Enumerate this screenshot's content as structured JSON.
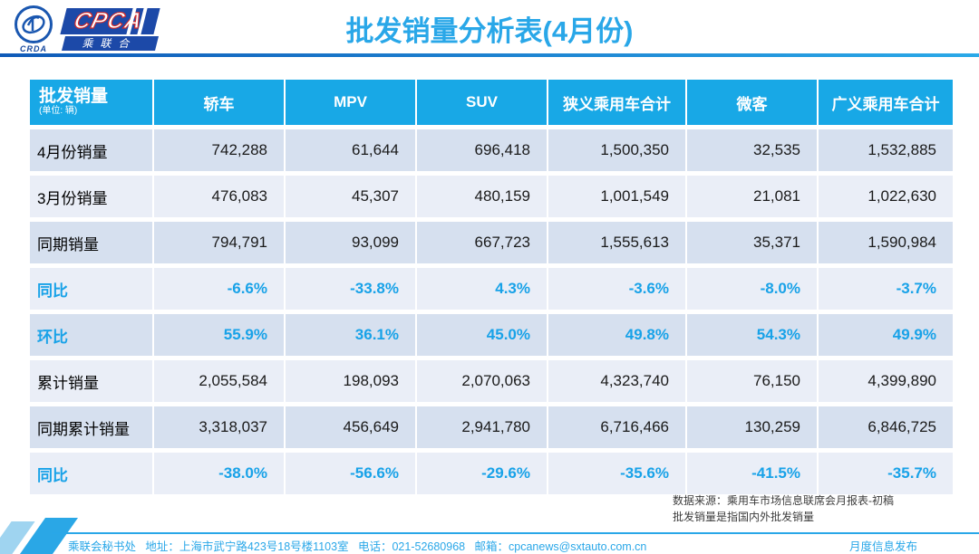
{
  "header": {
    "title": "批发销量分析表(4月份)",
    "logo": {
      "emblem_text": "CRDA",
      "brand": "CPCA",
      "brand_sub": "乘联合"
    }
  },
  "table": {
    "corner": {
      "title": "批发销量",
      "unit": "(单位: 辆)"
    },
    "columns": [
      "轿车",
      "MPV",
      "SUV",
      "狭义乘用车合计",
      "微客",
      "广义乘用车合计"
    ],
    "rows": [
      {
        "label": "4月份销量",
        "kind": "number",
        "values": [
          "742,288",
          "61,644",
          "696,418",
          "1,500,350",
          "32,535",
          "1,532,885"
        ]
      },
      {
        "label": "3月份销量",
        "kind": "number",
        "values": [
          "476,083",
          "45,307",
          "480,159",
          "1,001,549",
          "21,081",
          "1,022,630"
        ]
      },
      {
        "label": "同期销量",
        "kind": "number",
        "values": [
          "794,791",
          "93,099",
          "667,723",
          "1,555,613",
          "35,371",
          "1,590,984"
        ]
      },
      {
        "label": "同比",
        "kind": "percent",
        "values": [
          "-6.6%",
          "-33.8%",
          "4.3%",
          "-3.6%",
          "-8.0%",
          "-3.7%"
        ]
      },
      {
        "label": "环比",
        "kind": "percent",
        "values": [
          "55.9%",
          "36.1%",
          "45.0%",
          "49.8%",
          "54.3%",
          "49.9%"
        ]
      },
      {
        "label": "累计销量",
        "kind": "number",
        "values": [
          "2,055,584",
          "198,093",
          "2,070,063",
          "4,323,740",
          "76,150",
          "4,399,890"
        ]
      },
      {
        "label": "同期累计销量",
        "kind": "number",
        "values": [
          "3,318,037",
          "456,649",
          "2,941,780",
          "6,716,466",
          "130,259",
          "6,846,725"
        ]
      },
      {
        "label": "同比",
        "kind": "percent",
        "values": [
          "-38.0%",
          "-56.6%",
          "-29.6%",
          "-35.6%",
          "-41.5%",
          "-35.7%"
        ]
      }
    ]
  },
  "notes": {
    "line1": "数据来源：乘用车市场信息联席会月报表-初稿",
    "line2": "批发销量是指国内外批发销量"
  },
  "footer": {
    "left": "乘联会秘书处   地址：上海市武宁路423号18号楼1103室   电话：021-52680968   邮箱：cpcanews@sxtauto.com.cn",
    "right": "月度信息发布"
  },
  "colors": {
    "accent_cyan": "#29A7E8",
    "table_header_bg": "#18A8E6",
    "row_band_dark": "#D6E0EF",
    "row_band_light": "#EAEEF7",
    "percent_text": "#18A2E8",
    "logo_blue": "#1C49A8"
  }
}
